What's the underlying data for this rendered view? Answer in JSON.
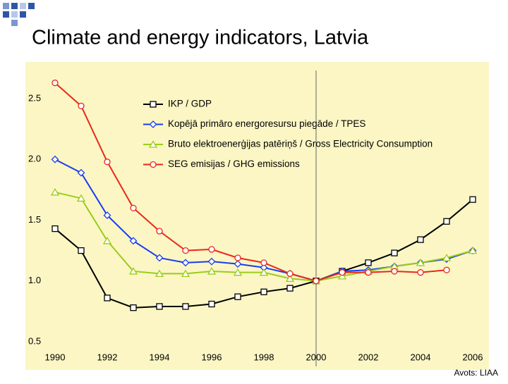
{
  "chart_data": {
    "type": "line",
    "title": "Climate and energy indicators, Latvia",
    "source": "Avots: LIAA",
    "x": [
      1990,
      1991,
      1992,
      1993,
      1994,
      1995,
      1996,
      1997,
      1998,
      1999,
      2000,
      2001,
      2002,
      2003,
      2004,
      2005,
      2006
    ],
    "series": [
      {
        "name": "IKP / GDP",
        "color": "#000000",
        "marker": "square",
        "values": [
          1.43,
          1.25,
          0.86,
          0.78,
          0.79,
          0.79,
          0.81,
          0.87,
          0.91,
          0.94,
          1.0,
          1.08,
          1.15,
          1.23,
          1.34,
          1.49,
          1.67
        ]
      },
      {
        "name": "Kopējā primāro energoresursu piegāde / TPES",
        "color": "#1a3cf0",
        "marker": "diamond",
        "values": [
          2.0,
          1.89,
          1.54,
          1.33,
          1.19,
          1.15,
          1.16,
          1.14,
          1.11,
          1.06,
          1.0,
          1.08,
          1.09,
          1.12,
          1.15,
          1.18,
          1.25
        ]
      },
      {
        "name": "Bruto elektroenerģijas patēriņš / Gross Electricity Consumption",
        "color": "#9acd1a",
        "marker": "triangle",
        "values": [
          1.73,
          1.68,
          1.33,
          1.08,
          1.06,
          1.06,
          1.08,
          1.07,
          1.07,
          1.02,
          1.0,
          1.04,
          1.08,
          1.12,
          1.15,
          1.19,
          1.25
        ]
      },
      {
        "name": "SEG emisijas / GHG emissions",
        "color": "#e8281e",
        "marker": "circle",
        "values": [
          2.63,
          2.44,
          1.98,
          1.6,
          1.41,
          1.25,
          1.26,
          1.19,
          1.15,
          1.06,
          1.0,
          1.07,
          1.07,
          1.08,
          1.07,
          1.09,
          null
        ]
      }
    ],
    "reference_line_x": 2000,
    "xlim": [
      1989.5,
      2006.5
    ],
    "xticks": [
      1990,
      1992,
      1994,
      1996,
      1998,
      2000,
      2002,
      2004,
      2006
    ],
    "ylim": [
      0.5,
      2.7
    ],
    "yticks": [
      0.5,
      {
        "value": 1,
        "label": "1.0"
      },
      1.5,
      {
        "value": 2,
        "label": "2.0"
      },
      2.5
    ],
    "background": "#fbf6c4"
  }
}
